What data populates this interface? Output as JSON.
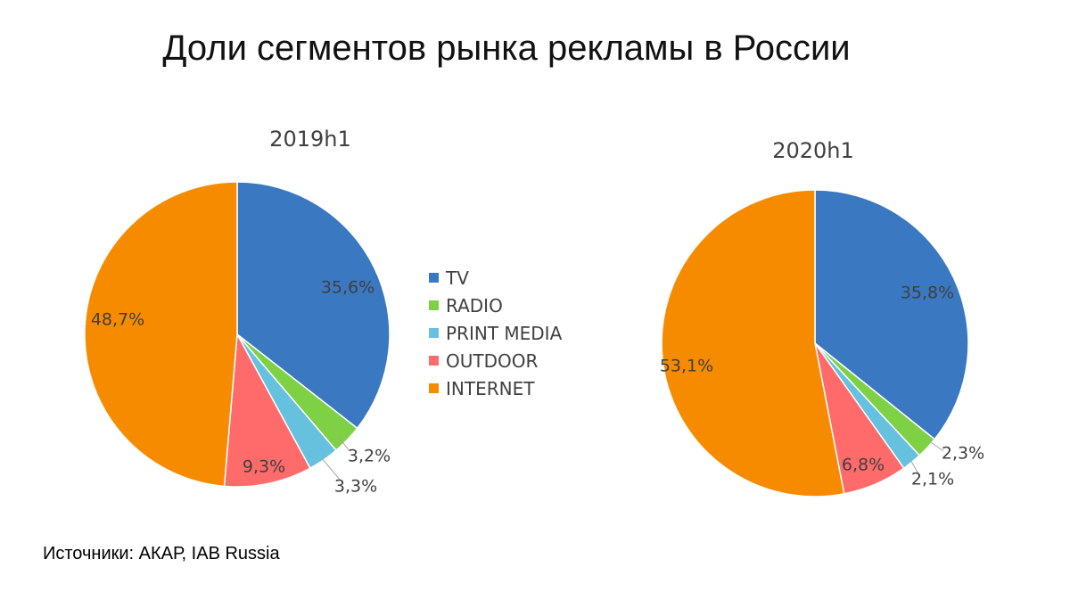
{
  "title": "Доли сегментов рынка рекламы в России",
  "source": "Источники: АКАР, IAB Russia",
  "colors": {
    "TV": "#3a78c2",
    "RADIO": "#7ed144",
    "PRINT MEDIA": "#66c1df",
    "OUTDOOR": "#ff6a6a",
    "INTERNET": "#f78b00"
  },
  "chart_data": [
    {
      "type": "pie",
      "title": "2019h1",
      "legend": "right",
      "categories": [
        "TV",
        "RADIO",
        "PRINT MEDIA",
        "OUTDOOR",
        "INTERNET"
      ],
      "values": [
        35.6,
        3.2,
        3.3,
        9.3,
        48.7
      ],
      "labels": [
        "35,6%",
        "3,2%",
        "3,3%",
        "9,3%",
        "48,7%"
      ]
    },
    {
      "type": "pie",
      "title": "2020h1",
      "categories": [
        "TV",
        "RADIO",
        "PRINT MEDIA",
        "OUTDOOR",
        "INTERNET"
      ],
      "values": [
        35.8,
        2.3,
        2.1,
        6.8,
        53.1
      ],
      "labels": [
        "35,8%",
        "2,3%",
        "2,1%",
        "6,8%",
        "53,1%"
      ]
    }
  ]
}
